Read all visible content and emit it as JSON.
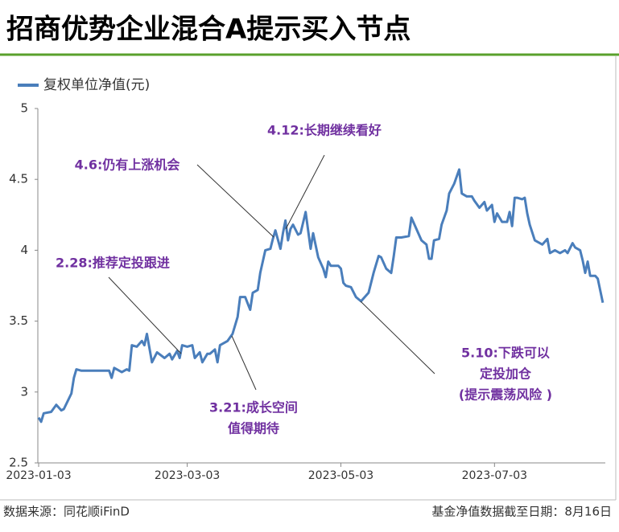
{
  "chart_data": {
    "type": "line",
    "title": "招商优势企业混合A提示买入节点",
    "source": "数据来源：同花顺iFinD",
    "note": "基金净值数据截至日期：8月16日",
    "x": [
      "2023-01-03",
      "2023-01-04",
      "2023-01-05",
      "2023-01-08",
      "2023-01-10",
      "2023-01-12",
      "2023-01-13",
      "2023-01-16",
      "2023-01-17",
      "2023-01-18",
      "2023-01-20",
      "2023-01-31",
      "2023-02-01",
      "2023-02-02",
      "2023-02-05",
      "2023-02-07",
      "2023-02-08",
      "2023-02-09",
      "2023-02-11",
      "2023-02-13",
      "2023-02-14",
      "2023-02-15",
      "2023-02-17",
      "2023-02-19",
      "2023-02-22",
      "2023-02-24",
      "2023-02-25",
      "2023-02-27",
      "2023-02-28",
      "2023-03-01",
      "2023-03-03",
      "2023-03-05",
      "2023-03-06",
      "2023-03-08",
      "2023-03-09",
      "2023-03-11",
      "2023-03-12",
      "2023-03-14",
      "2023-03-15",
      "2023-03-16",
      "2023-03-19",
      "2023-03-21",
      "2023-03-23",
      "2023-03-24",
      "2023-03-26",
      "2023-03-28",
      "2023-03-29",
      "2023-03-31",
      "2023-04-01",
      "2023-04-03",
      "2023-04-05",
      "2023-04-06",
      "2023-04-07",
      "2023-04-09",
      "2023-04-10",
      "2023-04-11",
      "2023-04-12",
      "2023-04-13",
      "2023-04-14",
      "2023-04-16",
      "2023-04-17",
      "2023-04-19",
      "2023-04-21",
      "2023-04-22",
      "2023-04-24",
      "2023-04-26",
      "2023-04-27",
      "2023-04-28",
      "2023-04-29",
      "2023-05-02",
      "2023-05-03",
      "2023-05-04",
      "2023-05-05",
      "2023-05-07",
      "2023-05-09",
      "2023-05-11",
      "2023-05-13",
      "2023-05-14",
      "2023-05-16",
      "2023-05-18",
      "2023-05-19",
      "2023-05-21",
      "2023-05-23",
      "2023-05-24",
      "2023-05-25",
      "2023-05-27",
      "2023-05-30",
      "2023-05-31",
      "2023-06-02",
      "2023-06-04",
      "2023-06-06",
      "2023-06-07",
      "2023-06-08",
      "2023-06-09",
      "2023-06-11",
      "2023-06-12",
      "2023-06-14",
      "2023-06-15",
      "2023-06-17",
      "2023-06-19",
      "2023-06-20",
      "2023-06-22",
      "2023-06-24",
      "2023-06-25",
      "2023-06-27",
      "2023-06-29",
      "2023-06-30",
      "2023-07-02",
      "2023-07-03",
      "2023-07-04",
      "2023-07-06",
      "2023-07-08",
      "2023-07-09",
      "2023-07-10",
      "2023-07-11",
      "2023-07-12",
      "2023-07-14",
      "2023-07-15",
      "2023-07-16",
      "2023-07-17",
      "2023-07-19",
      "2023-07-20",
      "2023-07-22",
      "2023-07-24",
      "2023-07-25",
      "2023-07-27",
      "2023-07-29",
      "2023-07-31",
      "2023-08-01",
      "2023-08-03",
      "2023-08-04",
      "2023-08-06",
      "2023-08-07",
      "2023-08-08",
      "2023-08-09",
      "2023-08-10",
      "2023-08-12",
      "2023-08-13",
      "2023-08-15"
    ],
    "series": [
      {
        "name": "复权单位净值(元)",
        "color": "#4a7ebb",
        "values": [
          2.82,
          2.79,
          2.85,
          2.86,
          2.91,
          2.87,
          2.88,
          2.99,
          3.1,
          3.16,
          3.15,
          3.15,
          3.1,
          3.17,
          3.14,
          3.16,
          3.15,
          3.33,
          3.32,
          3.36,
          3.33,
          3.41,
          3.21,
          3.28,
          3.24,
          3.27,
          3.23,
          3.29,
          3.24,
          3.33,
          3.32,
          3.33,
          3.24,
          3.28,
          3.21,
          3.27,
          3.27,
          3.3,
          3.21,
          3.33,
          3.36,
          3.41,
          3.53,
          3.67,
          3.67,
          3.58,
          3.7,
          3.72,
          3.84,
          4.0,
          4.01,
          4.08,
          4.14,
          4.01,
          4.12,
          4.21,
          4.07,
          4.15,
          4.18,
          4.11,
          4.12,
          4.27,
          4.01,
          4.12,
          3.95,
          3.87,
          3.81,
          3.92,
          3.89,
          3.89,
          3.87,
          3.77,
          3.75,
          3.74,
          3.67,
          3.64,
          3.68,
          3.7,
          3.84,
          3.96,
          3.95,
          3.87,
          3.84,
          3.96,
          4.09,
          4.09,
          4.1,
          4.23,
          4.15,
          4.07,
          4.04,
          3.94,
          3.94,
          4.07,
          4.08,
          4.18,
          4.28,
          4.4,
          4.47,
          4.57,
          4.4,
          4.38,
          4.38,
          4.35,
          4.3,
          4.34,
          4.28,
          4.32,
          4.2,
          4.26,
          4.2,
          4.2,
          4.27,
          4.17,
          4.37,
          4.37,
          4.36,
          4.37,
          4.26,
          4.18,
          4.07,
          4.06,
          4.04,
          4.08,
          3.98,
          4.0,
          3.98,
          4.0,
          3.98,
          4.05,
          4.02,
          4.0,
          3.93,
          3.84,
          3.92,
          3.82,
          3.82,
          3.8,
          3.63
        ]
      }
    ],
    "xlim": [
      "2023-01-03",
      "2023-08-16"
    ],
    "xticks": [
      "2023-01-03",
      "2023-03-03",
      "2023-05-03",
      "2023-07-03"
    ],
    "ylim": [
      2.5,
      5
    ],
    "yticks": [
      2.5,
      3,
      3.5,
      4,
      4.5,
      5
    ],
    "annotations": [
      [
        "2.28:推荐定投跟进"
      ],
      [
        "3.21:成长空间",
        "值得期待"
      ],
      [
        "4.6:仍有上涨机会"
      ],
      [
        "4.12:长期继续看好"
      ],
      [
        "5.10:下跌可以",
        "定投加仓",
        "(提示震荡风险 )"
      ]
    ],
    "annotation_color": "#7030a0"
  }
}
